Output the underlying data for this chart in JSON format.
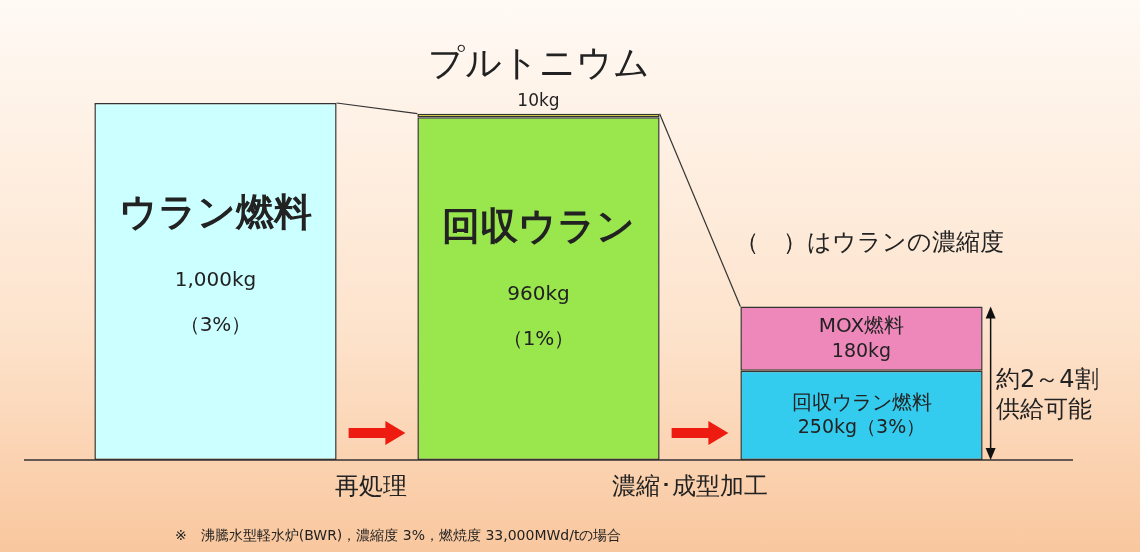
{
  "chart_data": {
    "type": "bar",
    "stacked": true,
    "categories": [
      null,
      null,
      null
    ],
    "series": [
      {
        "name": "ウラン燃料",
        "color": "#ccffff",
        "values": [
          1000,
          null,
          null
        ],
        "value_labels": [
          "1,000kg\n（3%）",
          null,
          null
        ]
      },
      {
        "name": "回収ウラン",
        "color": "#99e64d",
        "values": [
          null,
          960,
          null
        ],
        "value_labels": [
          null,
          "960kg\n（1%）",
          null
        ]
      },
      {
        "name": "プルトニウム",
        "color": "#ffff00",
        "values": [
          null,
          10,
          null
        ],
        "value_labels": [
          null,
          "10kg",
          null
        ]
      },
      {
        "name": "回収ウラン燃料",
        "color": "#33ccee",
        "values": [
          null,
          null,
          250
        ],
        "value_labels": [
          null,
          null,
          "250kg（3%）"
        ]
      },
      {
        "name": "MOX燃料",
        "color": "#ee88bb",
        "values": [
          null,
          null,
          180
        ],
        "value_labels": [
          null,
          null,
          "180kg"
        ]
      }
    ],
    "annotations": [
      "再処理",
      "濃縮･成型加工",
      "（　）はウランの濃縮度",
      "約2～4割",
      "供給可能",
      "※　沸騰水型軽水炉(BWR)，濃縮度 3%，燃焼度 33,000MWd/tの場合"
    ],
    "legend": false
  }
}
